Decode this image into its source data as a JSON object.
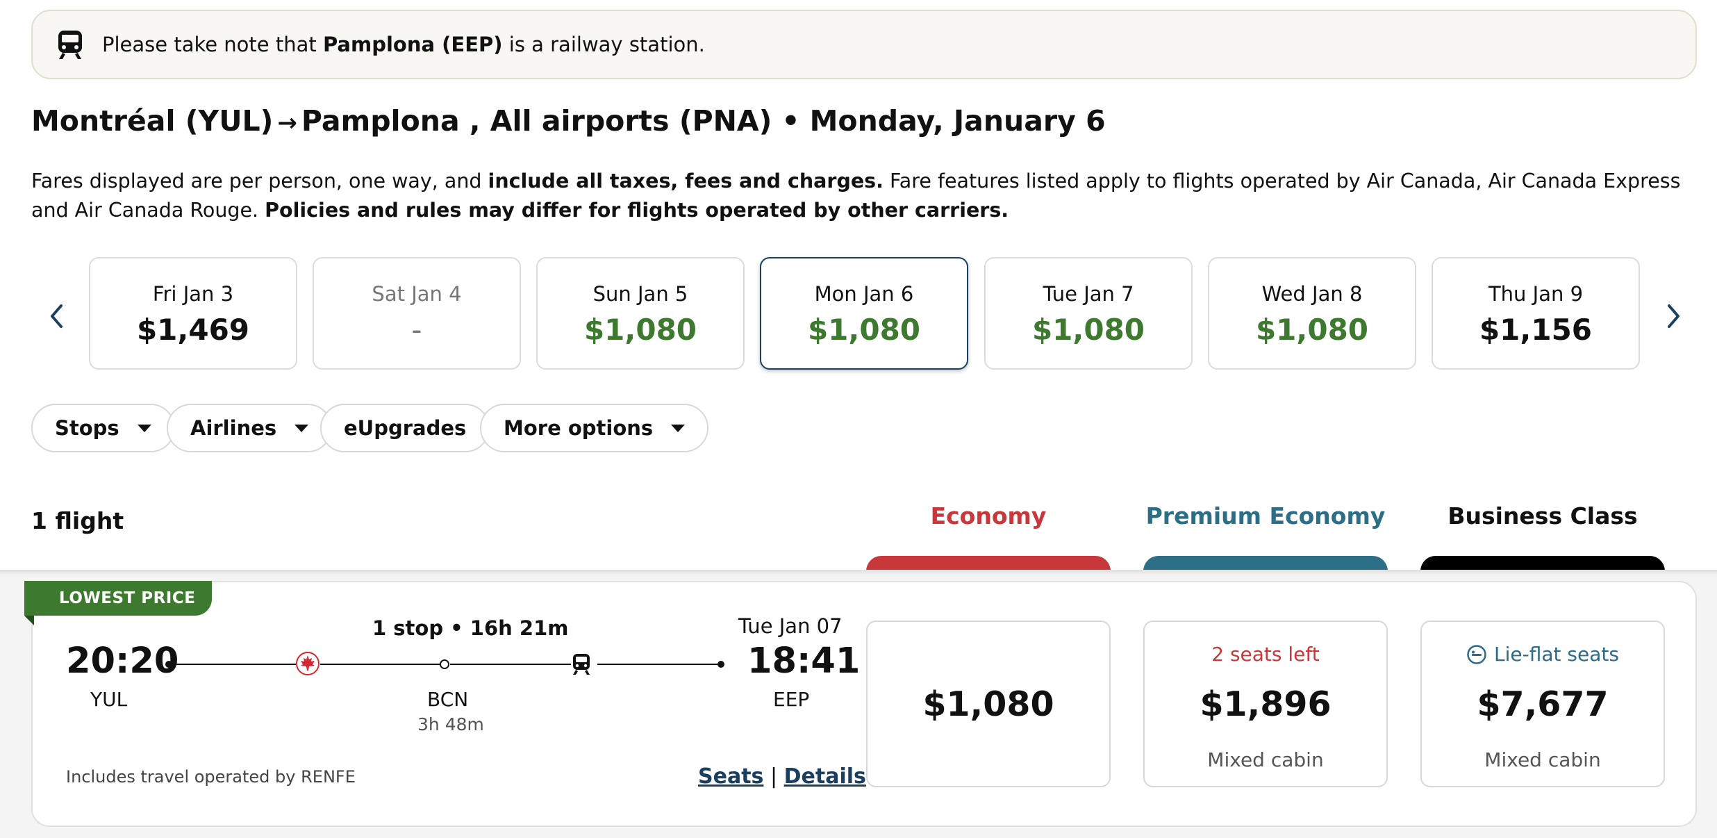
{
  "notice": {
    "prefix": "Please take note that ",
    "station": "Pamplona (EEP)",
    "suffix": " is a railway station."
  },
  "route": {
    "origin": "Montréal (YUL)",
    "arrow": "→",
    "destination": "Pamplona , All airports (PNA)",
    "separator": "•",
    "date": "Monday, January 6"
  },
  "fares_info": {
    "part1": "Fares displayed are per person, one way, and ",
    "bold1": "include all taxes, fees and charges.",
    "part2": " Fare features listed apply to flights operated by Air Canada, Air Canada Express and Air Canada Rouge. ",
    "bold2": "Policies and rules may differ for flights operated by other carriers."
  },
  "dates": [
    {
      "label": "Fri Jan 3",
      "price": "$1,469"
    },
    {
      "label": "Sat Jan 4",
      "price": "-"
    },
    {
      "label": "Sun Jan 5",
      "price": "$1,080"
    },
    {
      "label": "Mon Jan 6",
      "price": "$1,080"
    },
    {
      "label": "Tue Jan 7",
      "price": "$1,080"
    },
    {
      "label": "Wed Jan 8",
      "price": "$1,080"
    },
    {
      "label": "Thu Jan 9",
      "price": "$1,156"
    }
  ],
  "filters": {
    "stops": "Stops",
    "airlines": "Airlines",
    "eupgrades": "eUpgrades",
    "more": "More options"
  },
  "results_count": "1 flight",
  "cabins": {
    "economy": "Economy",
    "premium": "Premium Economy",
    "business": "Business Class"
  },
  "colors": {
    "economy": "#c8373a",
    "premium": "#2c6e86",
    "business": "#000000",
    "low_fare_green": "#3d7a30",
    "seats_left_red": "#c8373a",
    "link_navy": "#1b3f61"
  },
  "flight": {
    "badge": "LOWEST PRICE",
    "stops_summary": "1 stop • 16h 21m",
    "depart_time": "20:20",
    "depart_code": "YUL",
    "connection_code": "BCN",
    "layover": "3h 48m",
    "arrive_date": "Tue Jan 07",
    "arrive_time": "18:41",
    "arrive_code": "EEP",
    "operated_by": "Includes travel operated by RENFE",
    "seats_link": "Seats",
    "link_separator": "|",
    "details_link": "Details",
    "fares": {
      "economy_price": "$1,080",
      "premium_note": "2 seats left",
      "premium_price": "$1,896",
      "premium_cabin": "Mixed cabin",
      "business_note": "Lie-flat seats",
      "business_price": "$7,677",
      "business_cabin": "Mixed cabin"
    }
  }
}
